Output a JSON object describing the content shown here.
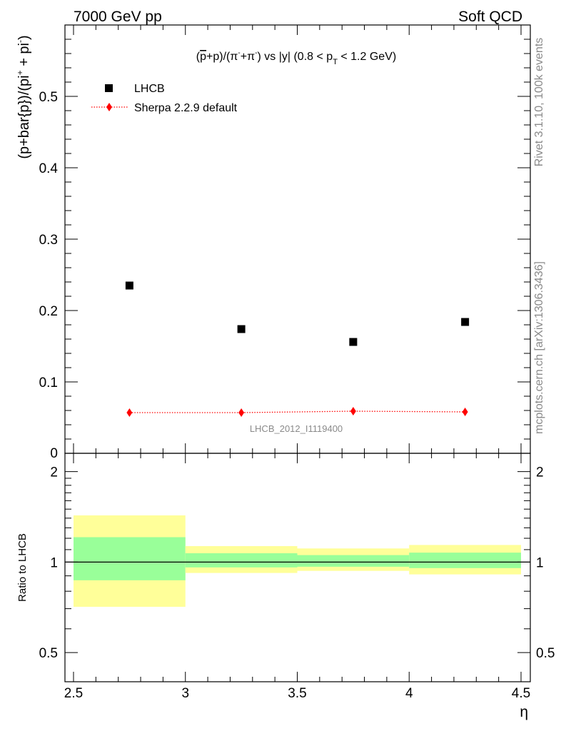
{
  "header": {
    "left": "7000 GeV pp",
    "right": "Soft QCD"
  },
  "side_labels": {
    "rivet": "Rivet 3.1.10,  100k events",
    "mcplots": "mcplots.cern.ch [arXiv:1306.3436]"
  },
  "chart_data": {
    "type": "scatter",
    "title": "(p̅+p)/(π⁻+π⁻) vs |y| (0.8 < p_T < 1.2 GeV)",
    "title_parts": {
      "a": "(",
      "pbar": "p",
      "b": "+p)/(π",
      "sup1": "-",
      "c": "+π",
      "sup2": "-",
      "d": ") vs |y| (0.8 < p",
      "sub": "T",
      "e": " < 1.2 GeV)"
    },
    "ylabel": "(p+bar{p})/(pi⁺ + pi⁻)",
    "ylabel_parts": {
      "main": "(p+bar{p})/(pi",
      "sup1": "+",
      "mid": " + pi",
      "sup2": "-",
      "end": ")"
    },
    "xlabel": "η",
    "xlim": [
      2.5,
      4.5
    ],
    "ylim": [
      0,
      0.6
    ],
    "x_ticks": [
      "2.5",
      "3",
      "3.5",
      "4",
      "4.5"
    ],
    "y_ticks": [
      "0.1",
      "0.2",
      "0.3",
      "0.4",
      "0.5"
    ],
    "y_zero_label": "0",
    "watermark": "LHCB_2012_I1119400",
    "series": [
      {
        "name": "LHCB",
        "marker": "square",
        "color": "#000000",
        "x": [
          2.75,
          3.25,
          3.75,
          4.25
        ],
        "y": [
          0.235,
          0.174,
          0.156,
          0.184
        ]
      },
      {
        "name": "Sherpa 2.2.9 default",
        "marker": "diamond",
        "line": "dotted",
        "color": "#ff0000",
        "x": [
          2.75,
          3.25,
          3.75,
          4.25
        ],
        "y": [
          0.057,
          0.057,
          0.059,
          0.058
        ]
      }
    ],
    "ratio": {
      "ylabel": "Ratio to LHCB",
      "ylim": [
        0.4,
        2.3
      ],
      "y_ticks": [
        "0.5",
        "1",
        "2"
      ],
      "bins": [
        {
          "lo": 2.5,
          "hi": 3.0,
          "green": [
            0.87,
            1.21
          ],
          "yellow": [
            0.71,
            1.43
          ]
        },
        {
          "lo": 3.0,
          "hi": 3.5,
          "green": [
            0.96,
            1.07
          ],
          "yellow": [
            0.92,
            1.13
          ]
        },
        {
          "lo": 3.5,
          "hi": 4.0,
          "green": [
            0.965,
            1.055
          ],
          "yellow": [
            0.935,
            1.11
          ]
        },
        {
          "lo": 4.0,
          "hi": 4.5,
          "green": [
            0.955,
            1.075
          ],
          "yellow": [
            0.91,
            1.14
          ]
        }
      ],
      "band_colors": {
        "green": "#99ff99",
        "yellow": "#ffff99"
      }
    }
  }
}
